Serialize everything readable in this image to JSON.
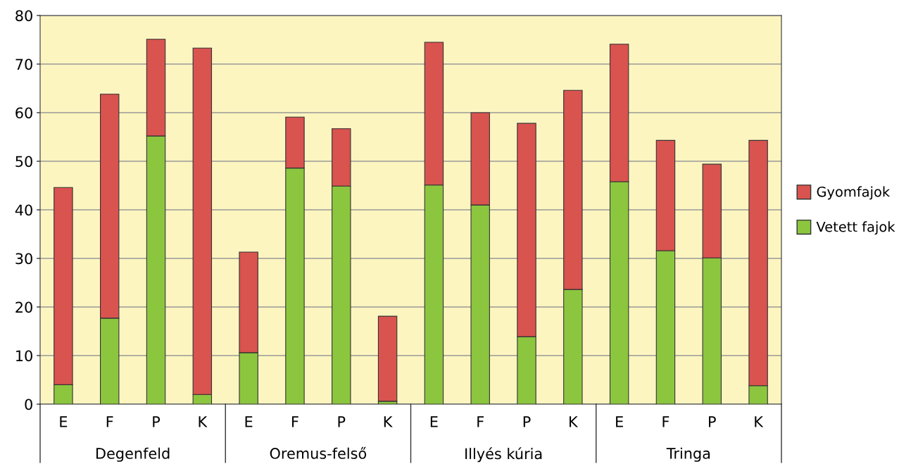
{
  "chart_data": {
    "type": "bar",
    "stacked": true,
    "categories": [
      "E",
      "F",
      "P",
      "K",
      "E",
      "F",
      "P",
      "K",
      "E",
      "F",
      "P",
      "K",
      "E",
      "F",
      "P",
      "K"
    ],
    "series": [
      {
        "name": "Vetett fajok",
        "color": "#8cc63f",
        "values": [
          4,
          17.7,
          55.2,
          2,
          10.6,
          48.6,
          44.9,
          0.6,
          45.1,
          41,
          13.9,
          23.6,
          45.8,
          31.6,
          30.1,
          3.8
        ]
      },
      {
        "name": "Gyomfajok",
        "color": "#d9534f",
        "values": [
          40.6,
          46.1,
          19.9,
          71.3,
          20.7,
          10.5,
          11.8,
          17.5,
          29.4,
          19,
          43.9,
          41,
          28.3,
          22.7,
          19.3,
          50.5
        ]
      }
    ],
    "annotations": [
      "Degenfeld",
      "Oremus-felső",
      "Illyés kúria",
      "Tringa"
    ],
    "ylim": [
      0,
      80
    ],
    "yticks": [
      0,
      10,
      20,
      30,
      40,
      50,
      60,
      70,
      80
    ],
    "grid": "y",
    "legend": "right"
  }
}
